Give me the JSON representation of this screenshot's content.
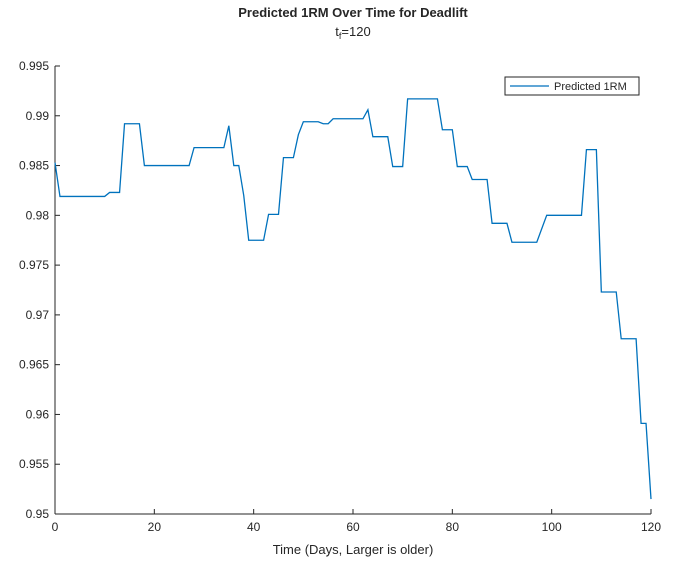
{
  "chart_data": {
    "type": "line",
    "title": "Predicted 1RM Over Time for Deadlift",
    "subtitle": [
      "t",
      "f",
      "=120"
    ],
    "x_label": "Time (Days, Larger is older)",
    "x": [
      0,
      1,
      10,
      11,
      13,
      14,
      17,
      18,
      27,
      28,
      34,
      35,
      36,
      37,
      38,
      39,
      42,
      43,
      45,
      46,
      48,
      49,
      50,
      53,
      54,
      55,
      56,
      62,
      63,
      64,
      67,
      68,
      70,
      71,
      77,
      78,
      80,
      81,
      83,
      84,
      87,
      88,
      91,
      92,
      97,
      99,
      106,
      107,
      109,
      110,
      113,
      114,
      117,
      118,
      119,
      120
    ],
    "series": [
      {
        "name": "Predicted 1RM",
        "color": "#0072bd",
        "values": [
          0.9853,
          0.9819,
          0.9819,
          0.9823,
          0.9823,
          0.9892,
          0.9892,
          0.985,
          0.985,
          0.9868,
          0.9868,
          0.989,
          0.985,
          0.985,
          0.982,
          0.9775,
          0.9775,
          0.9801,
          0.9801,
          0.9858,
          0.9858,
          0.9881,
          0.9894,
          0.9894,
          0.9892,
          0.9892,
          0.9897,
          0.9897,
          0.9906,
          0.9879,
          0.9879,
          0.9849,
          0.9849,
          0.9917,
          0.9917,
          0.9886,
          0.9886,
          0.9849,
          0.9849,
          0.9836,
          0.9836,
          0.9792,
          0.9792,
          0.9773,
          0.9773,
          0.98,
          0.98,
          0.9866,
          0.9866,
          0.9723,
          0.9723,
          0.9676,
          0.9676,
          0.9591,
          0.9591,
          0.9515
        ]
      }
    ],
    "xlim": [
      0,
      120
    ],
    "xticks": [
      0,
      20,
      40,
      60,
      80,
      100,
      120
    ],
    "ylim": [
      0.95,
      0.995
    ],
    "yticks": [
      0.95,
      0.955,
      0.96,
      0.965,
      0.97,
      0.975,
      0.98,
      0.985,
      0.99,
      0.995
    ],
    "legend": "top-right",
    "grid": false
  }
}
